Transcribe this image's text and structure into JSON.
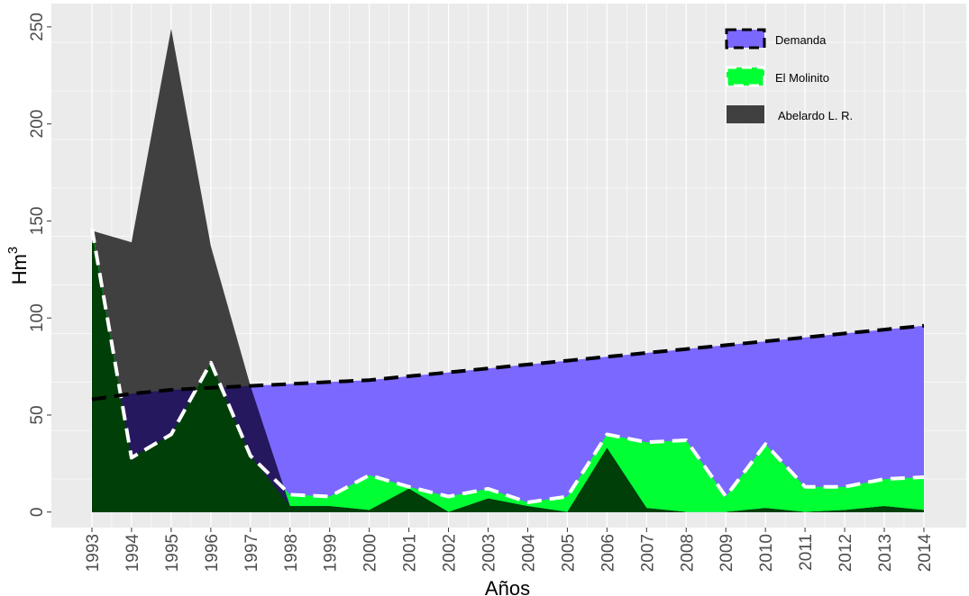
{
  "chart_data": {
    "type": "area",
    "xlabel": "Años",
    "ylabel": "Hm",
    "ylabel_superscript": "3",
    "x": [
      "1993",
      "1994",
      "1995",
      "1996",
      "1997",
      "1998",
      "1999",
      "2000",
      "2001",
      "2002",
      "2003",
      "2004",
      "2005",
      "2006",
      "2007",
      "2008",
      "2009",
      "2010",
      "2011",
      "2012",
      "2013",
      "2014"
    ],
    "ylim": [
      -8,
      262
    ],
    "yticks": [
      "0",
      "50",
      "100",
      "150",
      "200",
      "250"
    ],
    "grid": true,
    "legend_position": "top-right",
    "series": [
      {
        "name": "Demanda",
        "fill": "#7B68FF",
        "line": "#000000",
        "values": [
          58,
          61,
          63,
          64,
          65,
          66,
          67,
          68,
          70,
          72,
          74,
          76,
          78,
          80,
          82,
          84,
          86,
          88,
          90,
          92,
          94,
          96
        ]
      },
      {
        "name": "El Molinito",
        "fill": "#00FF33",
        "line": "#FFFFFF",
        "values": [
          146,
          28,
          40,
          77,
          29,
          9,
          8,
          19,
          13,
          8,
          12,
          5,
          8,
          40,
          36,
          37,
          8,
          35,
          13,
          13,
          17,
          18
        ]
      },
      {
        "name": "Abelardo L. R.",
        "fill": "#404040",
        "line": "",
        "values": [
          145,
          139,
          249,
          137,
          65,
          3,
          3,
          1,
          12,
          0,
          7,
          3,
          0,
          33,
          2,
          0,
          0,
          2,
          0,
          1,
          3,
          1
        ]
      }
    ]
  },
  "colors": {
    "panel_background": "#EBEBEB",
    "gridline": "#FFFFFF",
    "overlap_dark": "#003F08",
    "overlap_navy": "#25185F"
  }
}
